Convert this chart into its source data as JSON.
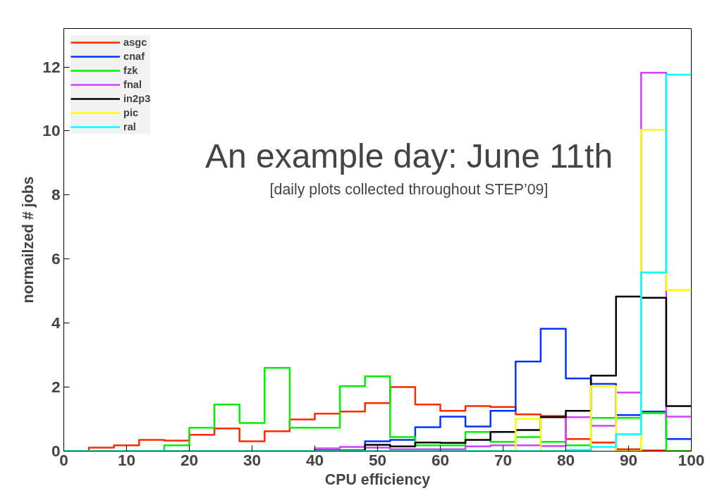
{
  "chart_data": {
    "type": "histogram",
    "title": "An example day: June 11th",
    "subtitle": "[daily plots collected throughout STEP’09]",
    "xlabel": "CPU efficiency",
    "ylabel": "normailzed # jobs",
    "bins": [
      0,
      4,
      8,
      12,
      16,
      20,
      24,
      28,
      32,
      36,
      40,
      44,
      48,
      52,
      56,
      60,
      64,
      68,
      72,
      76,
      80,
      84,
      88,
      92,
      96,
      100
    ],
    "series": [
      {
        "name": "asgc",
        "color": "#ff2a00",
        "values": [
          0,
          0.11,
          0.18,
          0.35,
          0.33,
          0.51,
          0.71,
          0.31,
          0.62,
          0.99,
          1.17,
          1.24,
          1.5,
          2.0,
          1.46,
          1.26,
          1.41,
          1.38,
          1.15,
          1.1,
          0.38,
          0.27,
          0.06,
          0.02,
          0
        ]
      },
      {
        "name": "cnaf",
        "color": "#0033ff",
        "values": [
          0,
          0,
          0,
          0,
          0,
          0,
          0,
          0,
          0,
          0,
          0,
          0,
          0.31,
          0.35,
          0.75,
          1.08,
          0.77,
          1.26,
          2.8,
          3.82,
          2.27,
          2.1,
          1.13,
          1.24,
          0.38
        ]
      },
      {
        "name": "fzk",
        "color": "#00ee00",
        "values": [
          0,
          0,
          0,
          0,
          0.18,
          0.73,
          1.46,
          0.88,
          2.6,
          0.73,
          0.73,
          2.03,
          2.34,
          0.44,
          0.18,
          0.18,
          0.6,
          0.29,
          0.44,
          0.29,
          0.18,
          1.04,
          1.04,
          1.19,
          0
        ]
      },
      {
        "name": "fnal",
        "color": "#cc44ff",
        "values": [
          0,
          0,
          0,
          0,
          0,
          0,
          0,
          0,
          0,
          0,
          0.09,
          0.13,
          0.11,
          0.06,
          0.06,
          0.06,
          0.15,
          0.18,
          0.18,
          0.16,
          1.06,
          0.79,
          1.83,
          11.82,
          1.08
        ]
      },
      {
        "name": "in2p3",
        "color": "#000000",
        "values": [
          0,
          0,
          0,
          0,
          0,
          0,
          0,
          0,
          0,
          0,
          0.02,
          0.02,
          0.2,
          0.15,
          0.27,
          0.26,
          0.35,
          0.6,
          0.66,
          1.06,
          1.26,
          2.36,
          4.83,
          4.79,
          1.41
        ]
      },
      {
        "name": "pic",
        "color": "#ffff00",
        "values": [
          0,
          0,
          0,
          0,
          0,
          0,
          0,
          0,
          0,
          0,
          0,
          0,
          0,
          0,
          0,
          0,
          0,
          0,
          1.01,
          0,
          0.02,
          2.03,
          0,
          10.04,
          5.03
        ]
      },
      {
        "name": "ral",
        "color": "#00ffff",
        "values": [
          0,
          0,
          0,
          0,
          0,
          0,
          0,
          0,
          0,
          0,
          0,
          0,
          0,
          0,
          0,
          0,
          0,
          0,
          0,
          0,
          0.04,
          0.13,
          0.53,
          5.58,
          11.76
        ]
      }
    ],
    "xlim": [
      0,
      100
    ],
    "xticks": [
      0,
      10,
      20,
      30,
      40,
      50,
      60,
      70,
      80,
      90,
      100
    ],
    "ylim": [
      0,
      13.2
    ],
    "yticks": [
      0,
      2,
      4,
      6,
      8,
      10,
      12
    ],
    "grid": false,
    "legend": "top left"
  }
}
